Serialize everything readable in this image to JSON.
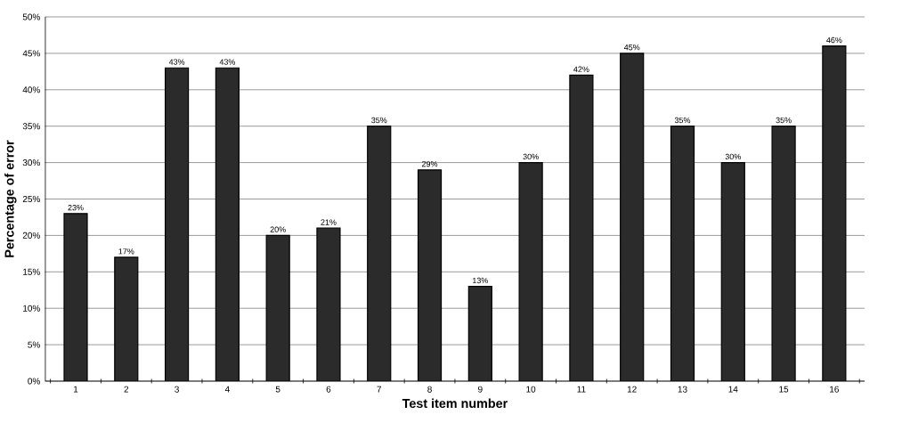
{
  "chart_data": {
    "type": "bar",
    "xlabel": "Test item number",
    "ylabel": "Percentage of error",
    "categories": [
      "1",
      "2",
      "3",
      "4",
      "5",
      "6",
      "7",
      "8",
      "9",
      "10",
      "11",
      "12",
      "13",
      "14",
      "15",
      "16"
    ],
    "values": [
      23,
      17,
      43,
      43,
      20,
      21,
      35,
      29,
      13,
      30,
      42,
      45,
      35,
      30,
      35,
      46
    ],
    "value_labels": [
      "23%",
      "17%",
      "43%",
      "43%",
      "20%",
      "21%",
      "35%",
      "29%",
      "13%",
      "30%",
      "42%",
      "45%",
      "35%",
      "30%",
      "35%",
      "46%"
    ],
    "color": "#2b2b2b",
    "ylim": [
      0,
      50
    ],
    "yticks": [
      {
        "value": 0,
        "label": "0%"
      },
      {
        "value": 5,
        "label": "5%"
      },
      {
        "value": 10,
        "label": "10%"
      },
      {
        "value": 15,
        "label": "15%"
      },
      {
        "value": 20,
        "label": "20%"
      },
      {
        "value": 25,
        "label": "25%"
      },
      {
        "value": 30,
        "label": "30%"
      },
      {
        "value": 35,
        "label": "35%"
      },
      {
        "value": 40,
        "label": "40%"
      },
      {
        "value": 45,
        "label": "45%"
      },
      {
        "value": 50,
        "label": "50%"
      }
    ],
    "grid": "y"
  }
}
